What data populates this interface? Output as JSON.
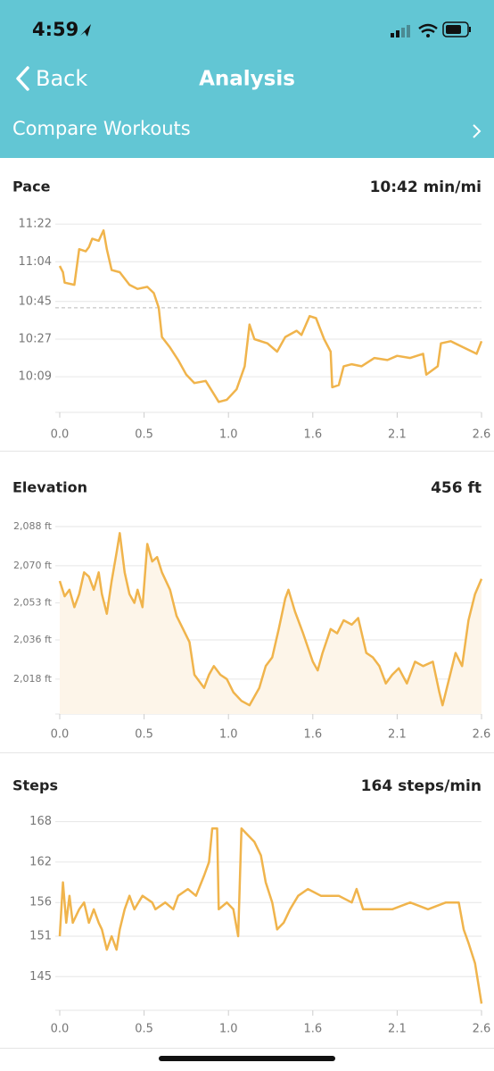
{
  "status_bar": {
    "time": "4:59"
  },
  "header": {
    "back": "Back",
    "title": "Analysis",
    "compare": "Compare Workouts"
  },
  "chart_data": [
    {
      "type": "line",
      "title": "Pace",
      "summary": "10:42 min/mi",
      "color": "#f0b44c",
      "grid": true,
      "reference_line": 642,
      "xlim": [
        0,
        2.6
      ],
      "xticks": [
        {
          "value": 0,
          "label": "0.0"
        },
        {
          "value": 0.52,
          "label": "0.5"
        },
        {
          "value": 1.04,
          "label": "1.0"
        },
        {
          "value": 1.56,
          "label": "1.6"
        },
        {
          "value": 2.08,
          "label": "2.1"
        },
        {
          "value": 2.6,
          "label": "2.6"
        }
      ],
      "ylim": [
        592,
        691
      ],
      "yticks": [
        {
          "value": 682,
          "label": "11:22"
        },
        {
          "value": 664,
          "label": "11:04"
        },
        {
          "value": 645,
          "label": "10:45"
        },
        {
          "value": 627,
          "label": "10:27"
        },
        {
          "value": 609,
          "label": "10:09"
        }
      ],
      "x": [
        0,
        0.02,
        0.03,
        0.09,
        0.12,
        0.16,
        0.18,
        0.2,
        0.24,
        0.27,
        0.29,
        0.32,
        0.37,
        0.43,
        0.48,
        0.54,
        0.58,
        0.61,
        0.63,
        0.68,
        0.73,
        0.78,
        0.83,
        0.9,
        0.98,
        1.03,
        1.09,
        1.14,
        1.17,
        1.2,
        1.28,
        1.34,
        1.39,
        1.46,
        1.49,
        1.54,
        1.58,
        1.63,
        1.67,
        1.68,
        1.72,
        1.75,
        1.8,
        1.86,
        1.94,
        2.02,
        2.08,
        2.16,
        2.24,
        2.26,
        2.33,
        2.35,
        2.41,
        2.49,
        2.57,
        2.6
      ],
      "values": [
        662,
        659,
        654,
        653,
        670,
        669,
        671,
        675,
        674,
        679,
        670,
        660,
        659,
        653,
        651,
        652,
        649,
        642,
        628,
        623,
        617,
        610,
        606,
        607,
        597,
        598,
        603,
        614,
        634,
        627,
        625,
        621,
        628,
        631,
        629,
        638,
        637,
        627,
        621,
        604,
        605,
        614,
        615,
        614,
        618,
        617,
        619,
        618,
        620,
        610,
        614,
        625,
        626,
        623,
        620,
        626
      ]
    },
    {
      "type": "area",
      "title": "Elevation",
      "summary": "456 ft",
      "color": "#f0b44c",
      "area_color": "#fdf5e9",
      "grid": true,
      "xlim": [
        0,
        2.6
      ],
      "xticks": [
        {
          "value": 0,
          "label": "0.0"
        },
        {
          "value": 0.52,
          "label": "0.5"
        },
        {
          "value": 1.04,
          "label": "1.0"
        },
        {
          "value": 1.56,
          "label": "1.6"
        },
        {
          "value": 2.08,
          "label": "2.1"
        },
        {
          "value": 2.6,
          "label": "2.6"
        }
      ],
      "ylim": [
        2002,
        2097
      ],
      "yticks": [
        {
          "value": 2088,
          "label": "2,088 ft"
        },
        {
          "value": 2070,
          "label": "2,070 ft"
        },
        {
          "value": 2053,
          "label": "2,053 ft"
        },
        {
          "value": 2036,
          "label": "2,036 ft"
        },
        {
          "value": 2018,
          "label": "2,018 ft"
        }
      ],
      "x": [
        0,
        0.03,
        0.06,
        0.09,
        0.12,
        0.15,
        0.18,
        0.21,
        0.24,
        0.26,
        0.29,
        0.32,
        0.35,
        0.37,
        0.4,
        0.43,
        0.46,
        0.48,
        0.51,
        0.54,
        0.57,
        0.6,
        0.63,
        0.68,
        0.72,
        0.76,
        0.8,
        0.83,
        0.89,
        0.92,
        0.95,
        0.99,
        1.03,
        1.07,
        1.12,
        1.17,
        1.23,
        1.27,
        1.31,
        1.35,
        1.39,
        1.41,
        1.45,
        1.5,
        1.56,
        1.59,
        1.62,
        1.67,
        1.71,
        1.75,
        1.8,
        1.84,
        1.89,
        1.93,
        1.97,
        2.01,
        2.05,
        2.09,
        2.14,
        2.19,
        2.24,
        2.3,
        2.34,
        2.36,
        2.4,
        2.44,
        2.48,
        2.52,
        2.56,
        2.6
      ],
      "values": [
        2063,
        2056,
        2059,
        2051,
        2057,
        2067,
        2065,
        2059,
        2067,
        2057,
        2048,
        2063,
        2076,
        2085,
        2067,
        2057,
        2053,
        2059,
        2051,
        2080,
        2072,
        2074,
        2067,
        2059,
        2047,
        2041,
        2035,
        2020,
        2014,
        2020,
        2024,
        2020,
        2018,
        2012,
        2008,
        2006,
        2014,
        2024,
        2028,
        2041,
        2055,
        2059,
        2049,
        2039,
        2026,
        2022,
        2030,
        2041,
        2039,
        2045,
        2043,
        2046,
        2030,
        2028,
        2024,
        2016,
        2020,
        2023,
        2016,
        2026,
        2024,
        2026,
        2012,
        2006,
        2018,
        2030,
        2024,
        2045,
        2057,
        2064
      ]
    },
    {
      "type": "line",
      "title": "Steps",
      "summary": "164 steps/min",
      "color": "#f0b44c",
      "grid": true,
      "xlim": [
        0,
        2.6
      ],
      "xticks": [
        {
          "value": 0,
          "label": "0.0"
        },
        {
          "value": 0.52,
          "label": "0.5"
        },
        {
          "value": 1.04,
          "label": "1.0"
        },
        {
          "value": 1.56,
          "label": "1.6"
        },
        {
          "value": 2.08,
          "label": "2.1"
        },
        {
          "value": 2.6,
          "label": "2.6"
        }
      ],
      "ylim": [
        140,
        171
      ],
      "yticks": [
        168,
        162,
        156,
        151,
        145
      ],
      "x": [
        0,
        0.02,
        0.04,
        0.06,
        0.08,
        0.12,
        0.15,
        0.18,
        0.21,
        0.24,
        0.26,
        0.29,
        0.32,
        0.35,
        0.37,
        0.4,
        0.43,
        0.46,
        0.51,
        0.57,
        0.59,
        0.65,
        0.7,
        0.73,
        0.79,
        0.84,
        0.89,
        0.92,
        0.94,
        0.97,
        0.98,
        1.03,
        1.07,
        1.1,
        1.12,
        1.16,
        1.2,
        1.24,
        1.27,
        1.31,
        1.34,
        1.38,
        1.42,
        1.47,
        1.53,
        1.61,
        1.72,
        1.8,
        1.83,
        1.87,
        1.94,
        2.05,
        2.16,
        2.27,
        2.38,
        2.46,
        2.49,
        2.52,
        2.56,
        2.6
      ],
      "values": [
        151,
        159,
        153,
        157,
        153,
        155,
        156,
        153,
        155,
        153,
        152,
        149,
        151,
        149,
        152,
        155,
        157,
        155,
        157,
        156,
        155,
        156,
        155,
        157,
        158,
        157,
        160,
        162,
        167,
        167,
        155,
        156,
        155,
        151,
        167,
        166,
        165,
        163,
        159,
        156,
        152,
        153,
        155,
        157,
        158,
        157,
        157,
        156,
        158,
        155,
        155,
        155,
        156,
        155,
        156,
        156,
        152,
        150,
        147,
        141
      ]
    }
  ]
}
